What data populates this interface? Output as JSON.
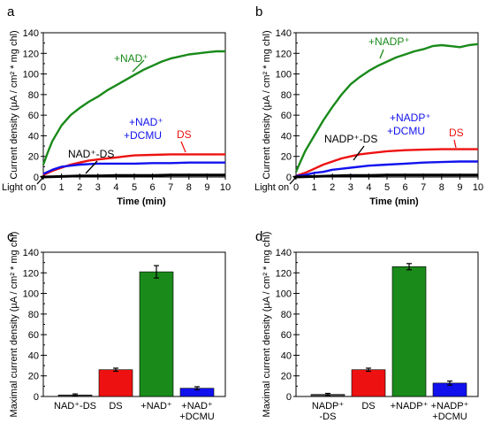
{
  "colors": {
    "green": "#1a8a1a",
    "red": "#ee1111",
    "blue": "#1111ee",
    "black": "#000000",
    "gray": "#444444"
  },
  "shared": {
    "light_on_label": "Light on"
  },
  "chart_data": [
    {
      "panel": "a",
      "type": "line",
      "xlabel": "Time (min)",
      "ylabel": "Current density (µA / cm² * mg chl)",
      "xlim": [
        0,
        10
      ],
      "ylim": [
        0,
        140
      ],
      "xticks": [
        "0",
        "1",
        "2",
        "3",
        "4",
        "5",
        "6",
        "7",
        "8",
        "9",
        "10"
      ],
      "yticks": [
        "0",
        "20",
        "40",
        "60",
        "80",
        "100",
        "120",
        "140"
      ],
      "series": [
        {
          "name": "+NAD⁺",
          "color": "#1a8a1a",
          "x": [
            0,
            0.25,
            0.5,
            1,
            1.5,
            2,
            2.5,
            3,
            3.5,
            4,
            4.5,
            5,
            5.5,
            6,
            6.5,
            7,
            7.5,
            8,
            8.5,
            9,
            9.5,
            10
          ],
          "y": [
            12,
            24,
            35,
            50,
            60,
            67,
            73,
            78,
            84,
            89,
            94,
            99,
            104,
            108,
            112,
            115,
            117,
            119,
            120,
            121,
            122,
            122
          ]
        },
        {
          "name": "DS",
          "color": "#ee1111",
          "x": [
            0,
            0.5,
            1,
            1.5,
            2,
            2.5,
            3,
            3.5,
            4,
            4.5,
            5,
            6,
            7,
            8,
            9,
            10
          ],
          "y": [
            2,
            6,
            9,
            12,
            14,
            16,
            17,
            18,
            19,
            20,
            21,
            21.5,
            22,
            22,
            22,
            22
          ]
        },
        {
          "name": "+NAD⁺ +DCMU",
          "color": "#1111ee",
          "x": [
            0,
            0.5,
            1,
            1.5,
            2,
            2.5,
            3,
            4,
            5,
            6,
            7,
            8,
            9,
            10
          ],
          "y": [
            3,
            7,
            10,
            11,
            12,
            12.5,
            13,
            13,
            13,
            13.5,
            13.5,
            14,
            14,
            14
          ]
        },
        {
          "name": "NAD⁺-DS",
          "color": "#000000",
          "x": [
            0,
            1,
            2,
            3,
            4,
            5,
            6,
            7,
            8,
            9,
            10
          ],
          "y": [
            0,
            0.5,
            1,
            1,
            1.5,
            1.5,
            1.5,
            2,
            2,
            2,
            2
          ]
        }
      ],
      "labels": [
        {
          "text": "+NAD⁺",
          "series": 0
        },
        {
          "text": "+NAD⁺",
          "series": 2
        },
        {
          "text": "+DCMU",
          "series": 2
        },
        {
          "text": "DS",
          "series": 1
        },
        {
          "text": "NAD⁺-DS",
          "series": 3
        }
      ]
    },
    {
      "panel": "b",
      "type": "line",
      "xlabel": "Time (min)",
      "ylabel": "Current density (µA / cm² * mg chl)",
      "xlim": [
        0,
        10
      ],
      "ylim": [
        0,
        140
      ],
      "xticks": [
        "0",
        "1",
        "2",
        "3",
        "4",
        "5",
        "6",
        "7",
        "8",
        "9",
        "10"
      ],
      "yticks": [
        "0",
        "20",
        "40",
        "60",
        "80",
        "100",
        "120",
        "140"
      ],
      "series": [
        {
          "name": "+NADP⁺",
          "color": "#1a8a1a",
          "x": [
            0,
            0.25,
            0.5,
            1,
            1.5,
            2,
            2.5,
            3,
            3.5,
            4,
            4.5,
            5,
            5.5,
            6,
            6.5,
            7,
            7.5,
            8,
            8.5,
            9,
            9.5,
            10
          ],
          "y": [
            5,
            15,
            25,
            40,
            55,
            68,
            80,
            90,
            97,
            103,
            108,
            112,
            116,
            119,
            122,
            124,
            127,
            128,
            127,
            126,
            128,
            129
          ]
        },
        {
          "name": "DS",
          "color": "#ee1111",
          "x": [
            0,
            0.5,
            1,
            1.5,
            2,
            2.5,
            3,
            3.5,
            4,
            5,
            6,
            7,
            8,
            9,
            10
          ],
          "y": [
            1,
            4,
            8,
            12,
            15,
            18,
            20,
            22,
            23,
            25,
            26,
            26.5,
            27,
            27,
            27
          ]
        },
        {
          "name": "+NADP⁺ +DCMU",
          "color": "#1111ee",
          "x": [
            0,
            0.5,
            1,
            1.5,
            2,
            2.5,
            3,
            4,
            5,
            6,
            7,
            8,
            9,
            10
          ],
          "y": [
            1,
            2,
            4,
            5,
            7,
            8,
            9,
            11,
            12,
            13,
            14,
            14.5,
            15,
            15
          ]
        },
        {
          "name": "NADP⁺-DS",
          "color": "#000000",
          "x": [
            0,
            1,
            2,
            3,
            4,
            5,
            6,
            7,
            8,
            9,
            10
          ],
          "y": [
            0,
            0.5,
            1,
            1.5,
            1.5,
            2,
            2,
            2,
            2,
            2,
            2
          ]
        }
      ],
      "labels": [
        {
          "text": "+NADP⁺",
          "series": 0
        },
        {
          "text": "+NADP⁺",
          "series": 2
        },
        {
          "text": "+DCMU",
          "series": 2
        },
        {
          "text": "DS",
          "series": 1
        },
        {
          "text": "NADP⁺-DS",
          "series": 3
        }
      ]
    },
    {
      "panel": "c",
      "type": "bar",
      "ylabel": "Maximal current density (µA / cm² * mg chl)",
      "ylim": [
        0,
        140
      ],
      "yticks": [
        "0",
        "20",
        "40",
        "60",
        "80",
        "100",
        "120",
        "140"
      ],
      "categories": [
        [
          "NAD⁺-DS"
        ],
        [
          "DS"
        ],
        [
          "+NAD⁺"
        ],
        [
          "+NAD⁺",
          "+DCMU"
        ]
      ],
      "values": [
        1.5,
        26,
        121,
        8
      ],
      "errors": [
        1,
        1.5,
        6,
        1.5
      ],
      "colors": [
        "#444444",
        "#ee1111",
        "#1a8a1a",
        "#1111ee"
      ]
    },
    {
      "panel": "d",
      "type": "bar",
      "ylabel": "Maximal current density (µA / cm² * mg chl)",
      "ylim": [
        0,
        140
      ],
      "yticks": [
        "0",
        "20",
        "40",
        "60",
        "80",
        "100",
        "120",
        "140"
      ],
      "categories": [
        [
          "NADP⁺",
          "-DS"
        ],
        [
          "DS"
        ],
        [
          "+NADP⁺"
        ],
        [
          "+NADP⁺",
          "+DCMU"
        ]
      ],
      "values": [
        2,
        26,
        126,
        13
      ],
      "errors": [
        1,
        1.5,
        3,
        2
      ],
      "colors": [
        "#444444",
        "#ee1111",
        "#1a8a1a",
        "#1111ee"
      ]
    }
  ]
}
